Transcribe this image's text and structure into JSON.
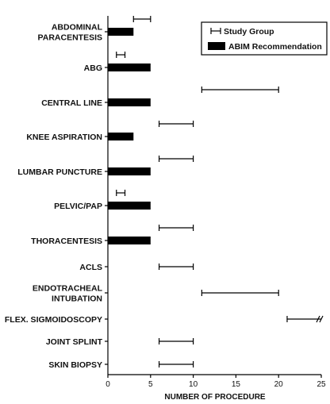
{
  "chart_data": {
    "type": "bar",
    "orientation": "horizontal",
    "categories": [
      [
        "ABDOMINAL",
        "PARACENTESIS"
      ],
      [
        "ABG"
      ],
      [
        "CENTRAL LINE"
      ],
      [
        "KNEE ASPIRATION"
      ],
      [
        "LUMBAR PUNCTURE"
      ],
      [
        "PELVIC/PAP"
      ],
      [
        "THORACENTESIS"
      ],
      [
        "ACLS"
      ],
      [
        "ENDOTRACHEAL",
        "INTUBATION"
      ],
      [
        "FLEX. SIGMOIDOSCOPY"
      ],
      [
        "JOINT SPLINT"
      ],
      [
        "SKIN BIOPSY"
      ]
    ],
    "series": [
      {
        "name": "Study Group",
        "kind": "range",
        "ranges": [
          [
            3,
            5
          ],
          [
            1,
            2
          ],
          [
            11,
            20
          ],
          [
            6,
            10
          ],
          [
            6,
            10
          ],
          [
            1,
            2
          ],
          [
            6,
            10
          ],
          [
            6,
            10
          ],
          [
            11,
            20
          ],
          [
            21,
            25
          ],
          [
            6,
            10
          ],
          [
            6,
            10
          ]
        ],
        "truncated": [
          false,
          false,
          false,
          false,
          false,
          false,
          false,
          false,
          false,
          true,
          false,
          false
        ]
      },
      {
        "name": "ABIM Recommendation",
        "kind": "bar",
        "values": [
          3,
          5,
          5,
          3,
          5,
          5,
          5,
          null,
          null,
          null,
          null,
          null
        ]
      }
    ],
    "xlabel": "NUMBER OF PROCEDURE",
    "xlim": [
      0,
      25
    ],
    "xticks": [
      0,
      5,
      10,
      15,
      20,
      25
    ],
    "legend": {
      "position": "top-right",
      "entries": [
        "Study Group",
        "ABIM Recommendation"
      ]
    },
    "grid": false,
    "colors": {
      "bar": "#000000",
      "range": "#000000"
    }
  }
}
